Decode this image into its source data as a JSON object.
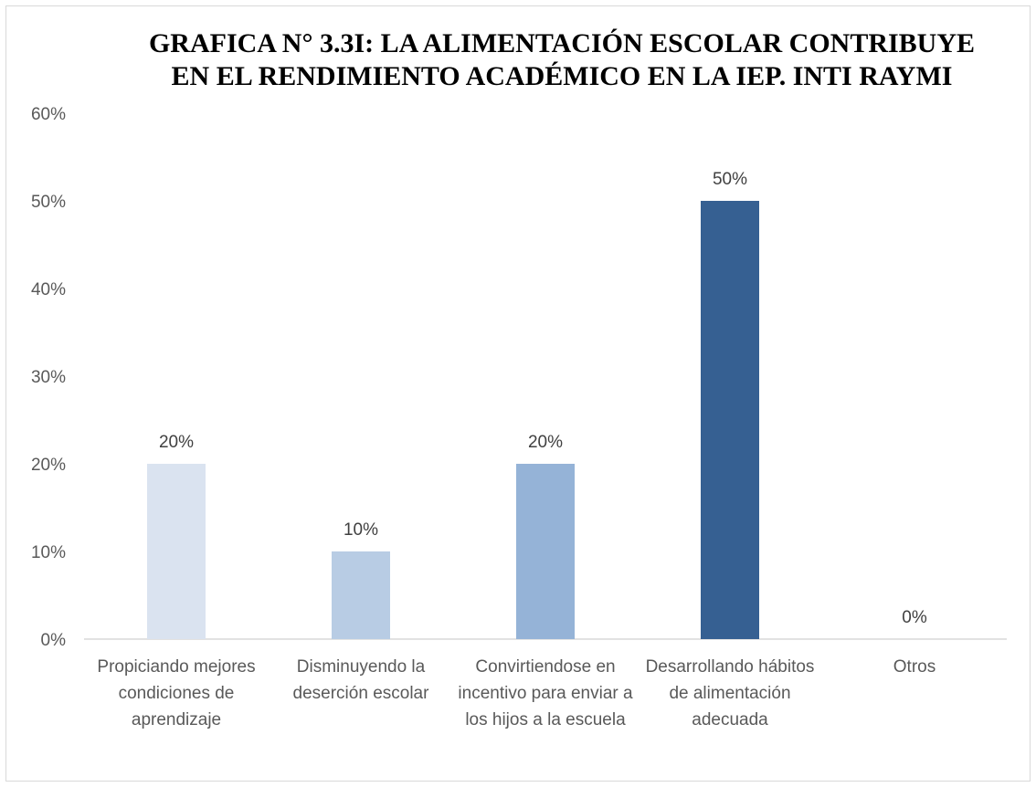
{
  "chart_data": {
    "type": "bar",
    "title": "GRAFICA N° 3.3I: LA ALIMENTACIÓN ESCOLAR CONTRIBUYE EN EL RENDIMIENTO ACADÉMICO EN LA IEP. INTI RAYMI",
    "categories": [
      "Propiciando mejores condiciones de aprendizaje",
      "Disminuyendo la deserción escolar",
      "Convirtiendose en incentivo para enviar a los hijos a la escuela",
      "Desarrollando hábitos de alimentación adecuada",
      "Otros"
    ],
    "values": [
      20,
      10,
      20,
      50,
      0
    ],
    "data_labels": [
      "20%",
      "10%",
      "20%",
      "50%",
      "0%"
    ],
    "bar_colors": [
      "#DAE3F0",
      "#B8CCE4",
      "#95B3D7",
      "#366092",
      "#1F3864"
    ],
    "ylim": [
      0,
      60
    ],
    "yticks": [
      0,
      10,
      20,
      30,
      40,
      50,
      60
    ],
    "ytick_labels": [
      "0%",
      "10%",
      "20%",
      "30%",
      "40%",
      "50%",
      "60%"
    ],
    "grid": false,
    "legend": "none",
    "xlabel": "",
    "ylabel": ""
  }
}
